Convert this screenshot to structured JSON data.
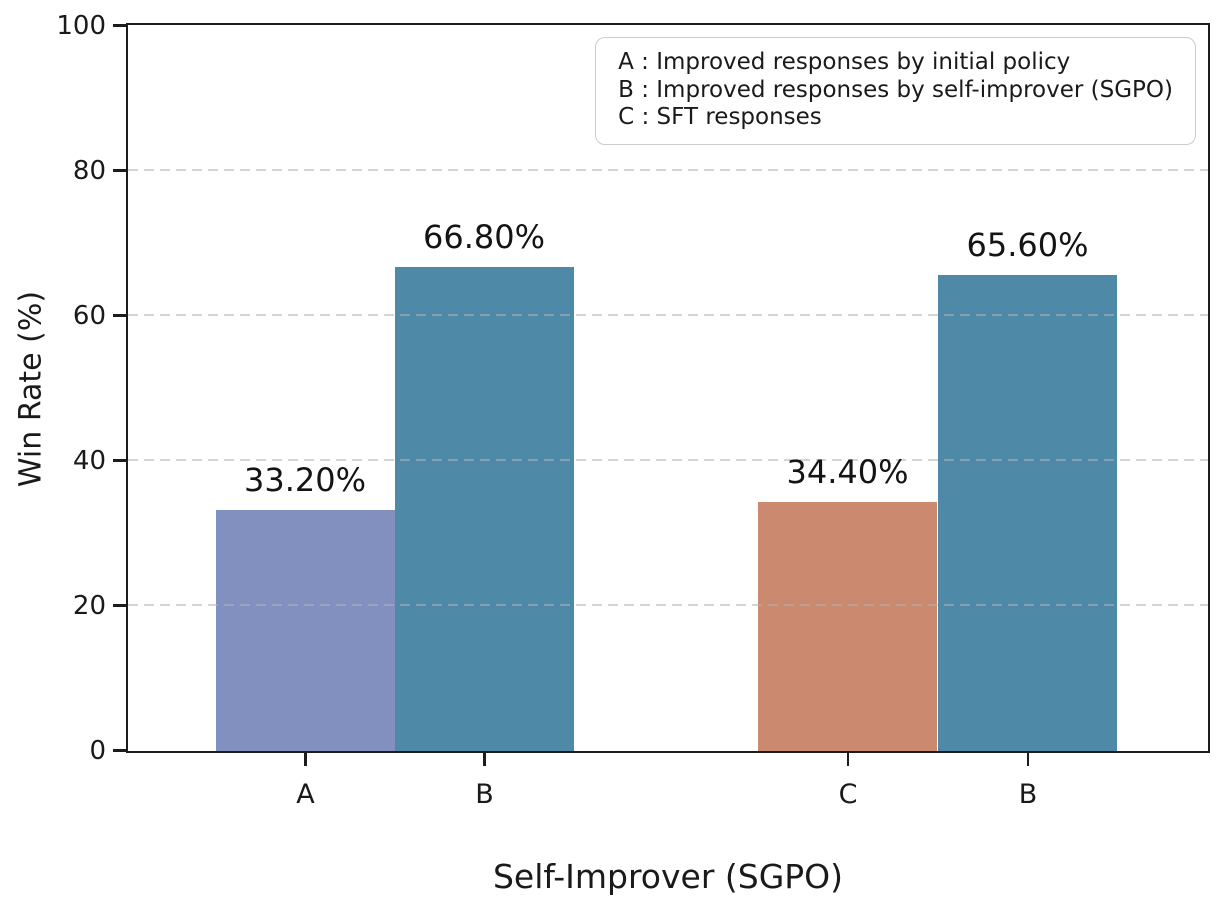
{
  "figure": {
    "background": "#ffffff",
    "text_color": "#1a1a1a",
    "spine_color": "#1c1c1c",
    "grid_color": "#c8c8c8"
  },
  "chart_data": {
    "type": "bar",
    "xlabel": "Self-Improver (SGPO)",
    "ylabel": "Win Rate (%)",
    "ylim": [
      0,
      100
    ],
    "yticks": [
      0,
      20,
      40,
      60,
      80,
      100
    ],
    "grid": "horizontal-dashed",
    "legend": {
      "position": "upper-right",
      "entries": [
        "A : Improved responses by initial policy",
        "B : Improved responses by self-improver (SGPO)",
        "C : SFT responses"
      ]
    },
    "bars": [
      {
        "category": "A",
        "value": 33.2,
        "label": "33.20%",
        "color": "#8190BE"
      },
      {
        "category": "B",
        "value": 66.8,
        "label": "66.80%",
        "color": "#4E8AA8"
      },
      {
        "category": "C",
        "value": 34.4,
        "label": "34.40%",
        "color": "#CB8A70"
      },
      {
        "category": "B",
        "value": 65.6,
        "label": "65.60%",
        "color": "#4E8AA8"
      }
    ]
  }
}
